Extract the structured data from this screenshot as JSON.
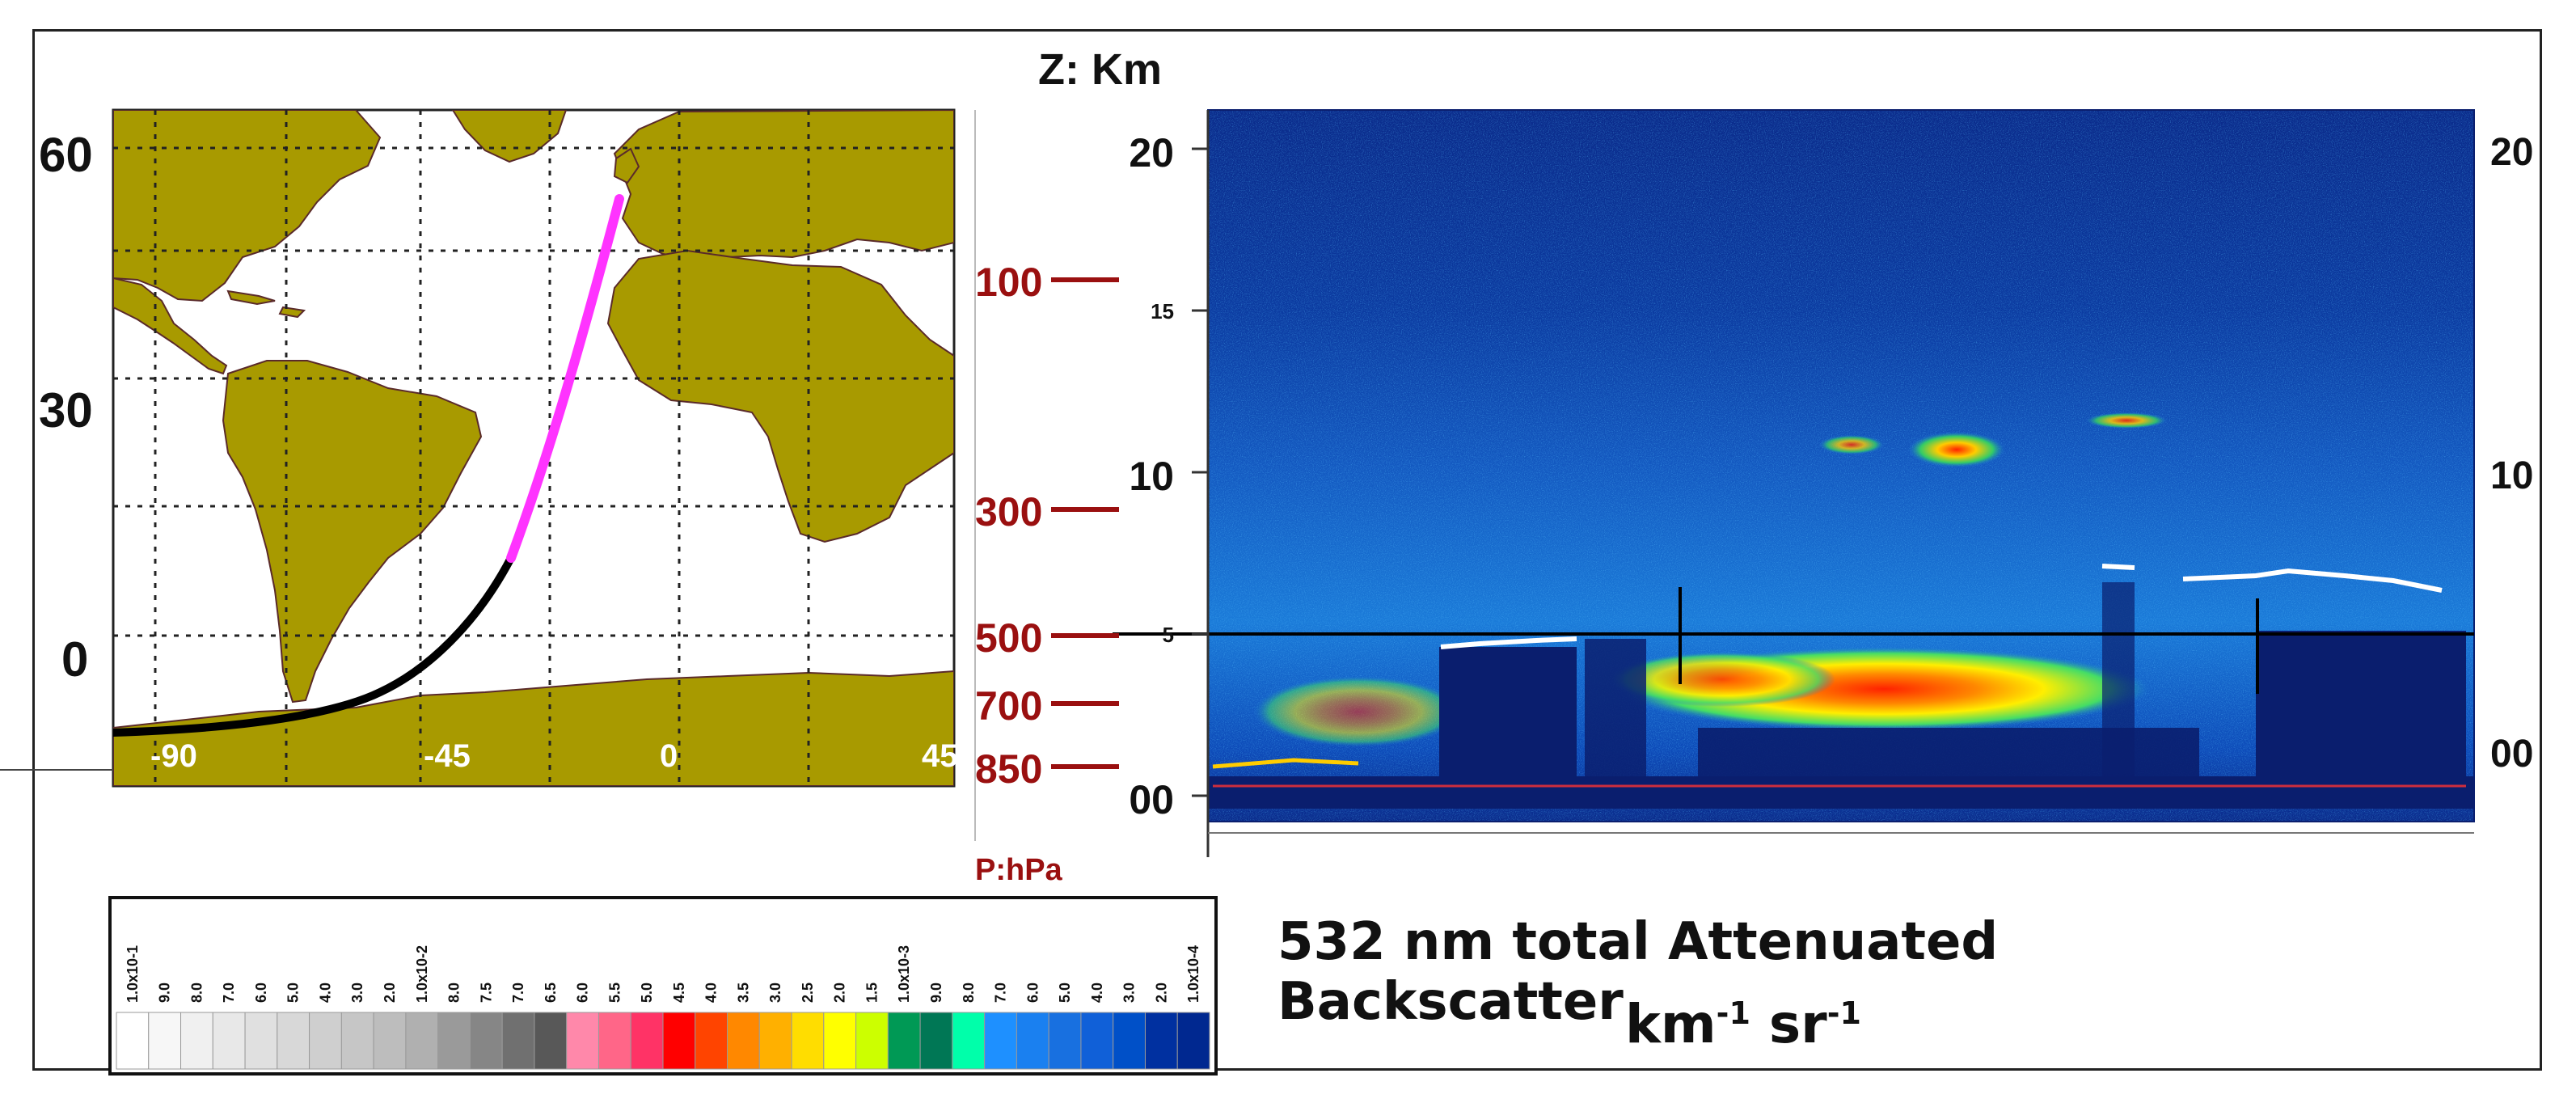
{
  "chart_data": [
    {
      "type": "map",
      "description_labels": {
        "lat_ticks": [
          "60",
          "30",
          "0"
        ],
        "lon_ticks": [
          "-90",
          "-45",
          "0",
          "45"
        ]
      },
      "lat_range": [
        -15,
        65
      ],
      "lon_range": [
        -105,
        45
      ],
      "grid": true,
      "track": {
        "colors": {
          "day": "#ff33ff",
          "night": "#000000"
        },
        "points_lonlat": [
          [
            -105,
            -12
          ],
          [
            -90,
            -11.5
          ],
          [
            -75,
            -10
          ],
          [
            -60,
            -7
          ],
          [
            -50,
            -3
          ],
          [
            -42,
            2
          ],
          [
            -35,
            10
          ],
          [
            -30,
            20
          ],
          [
            -25,
            30
          ],
          [
            -20,
            40
          ],
          [
            -15,
            50
          ],
          [
            -11,
            56
          ]
        ],
        "night_segment_end_index": 6
      }
    },
    {
      "type": "heatmap",
      "ylabel": "Z: Km",
      "y2label": "P:hPa",
      "ylim": [
        -1,
        21
      ],
      "left_ticks": [
        "20",
        "15",
        "10",
        "5",
        "00"
      ],
      "left_tick_values": [
        20,
        15,
        10,
        5,
        0
      ],
      "right_ticks": [
        "20",
        "10",
        "00"
      ],
      "right_tick_values": [
        20,
        10,
        0
      ],
      "pressure_levels": [
        {
          "label": "100",
          "value_km": 16
        },
        {
          "label": "300",
          "value_km": 9
        },
        {
          "label": "500",
          "value_km": 5
        },
        {
          "label": "700",
          "value_km": 3
        },
        {
          "label": "850",
          "value_km": 1
        }
      ],
      "reference_line_km": 5,
      "title": "532 nm total Attenuated Backscatter",
      "units": {
        "base": "km",
        "sup1": "-1",
        "mid": " sr",
        "sup2": "-1"
      }
    }
  ],
  "colorbar": {
    "labels": [
      "1.0x10-1",
      "9.0",
      "8.0",
      "7.0",
      "6.0",
      "5.0",
      "4.0",
      "3.0",
      "2.0",
      "1.0x10-2",
      "8.0",
      "7.5",
      "7.0",
      "6.5",
      "6.0",
      "5.5",
      "5.0",
      "4.5",
      "4.0",
      "3.5",
      "3.0",
      "2.5",
      "2.0",
      "1.5",
      "1.0x10-3",
      "9.0",
      "8.0",
      "7.0",
      "6.0",
      "5.0",
      "4.0",
      "3.0",
      "2.0",
      "1.0x10-4"
    ],
    "colors": [
      "#ffffff",
      "#f7f7f7",
      "#f0f0f0",
      "#e8e8e8",
      "#e0e0e0",
      "#d8d8d8",
      "#cfcfcf",
      "#c6c6c6",
      "#bdbdbd",
      "#b0b0b0",
      "#9a9a9a",
      "#868686",
      "#707070",
      "#585858",
      "#ff88aa",
      "#ff6688",
      "#ff3366",
      "#ff0000",
      "#ff4400",
      "#ff8800",
      "#ffb000",
      "#ffdd00",
      "#ffff00",
      "#ccff00",
      "#009955",
      "#007755",
      "#00ffaa",
      "#1e90ff",
      "#1a80f0",
      "#1870e0",
      "#1060d8",
      "#0050c8",
      "#0030a0",
      "#002890"
    ]
  },
  "colors": {
    "land": "#a89a00",
    "ocean": "#ffffff",
    "pressure": "#9a1010",
    "background_dark": "#0a1e6e"
  }
}
